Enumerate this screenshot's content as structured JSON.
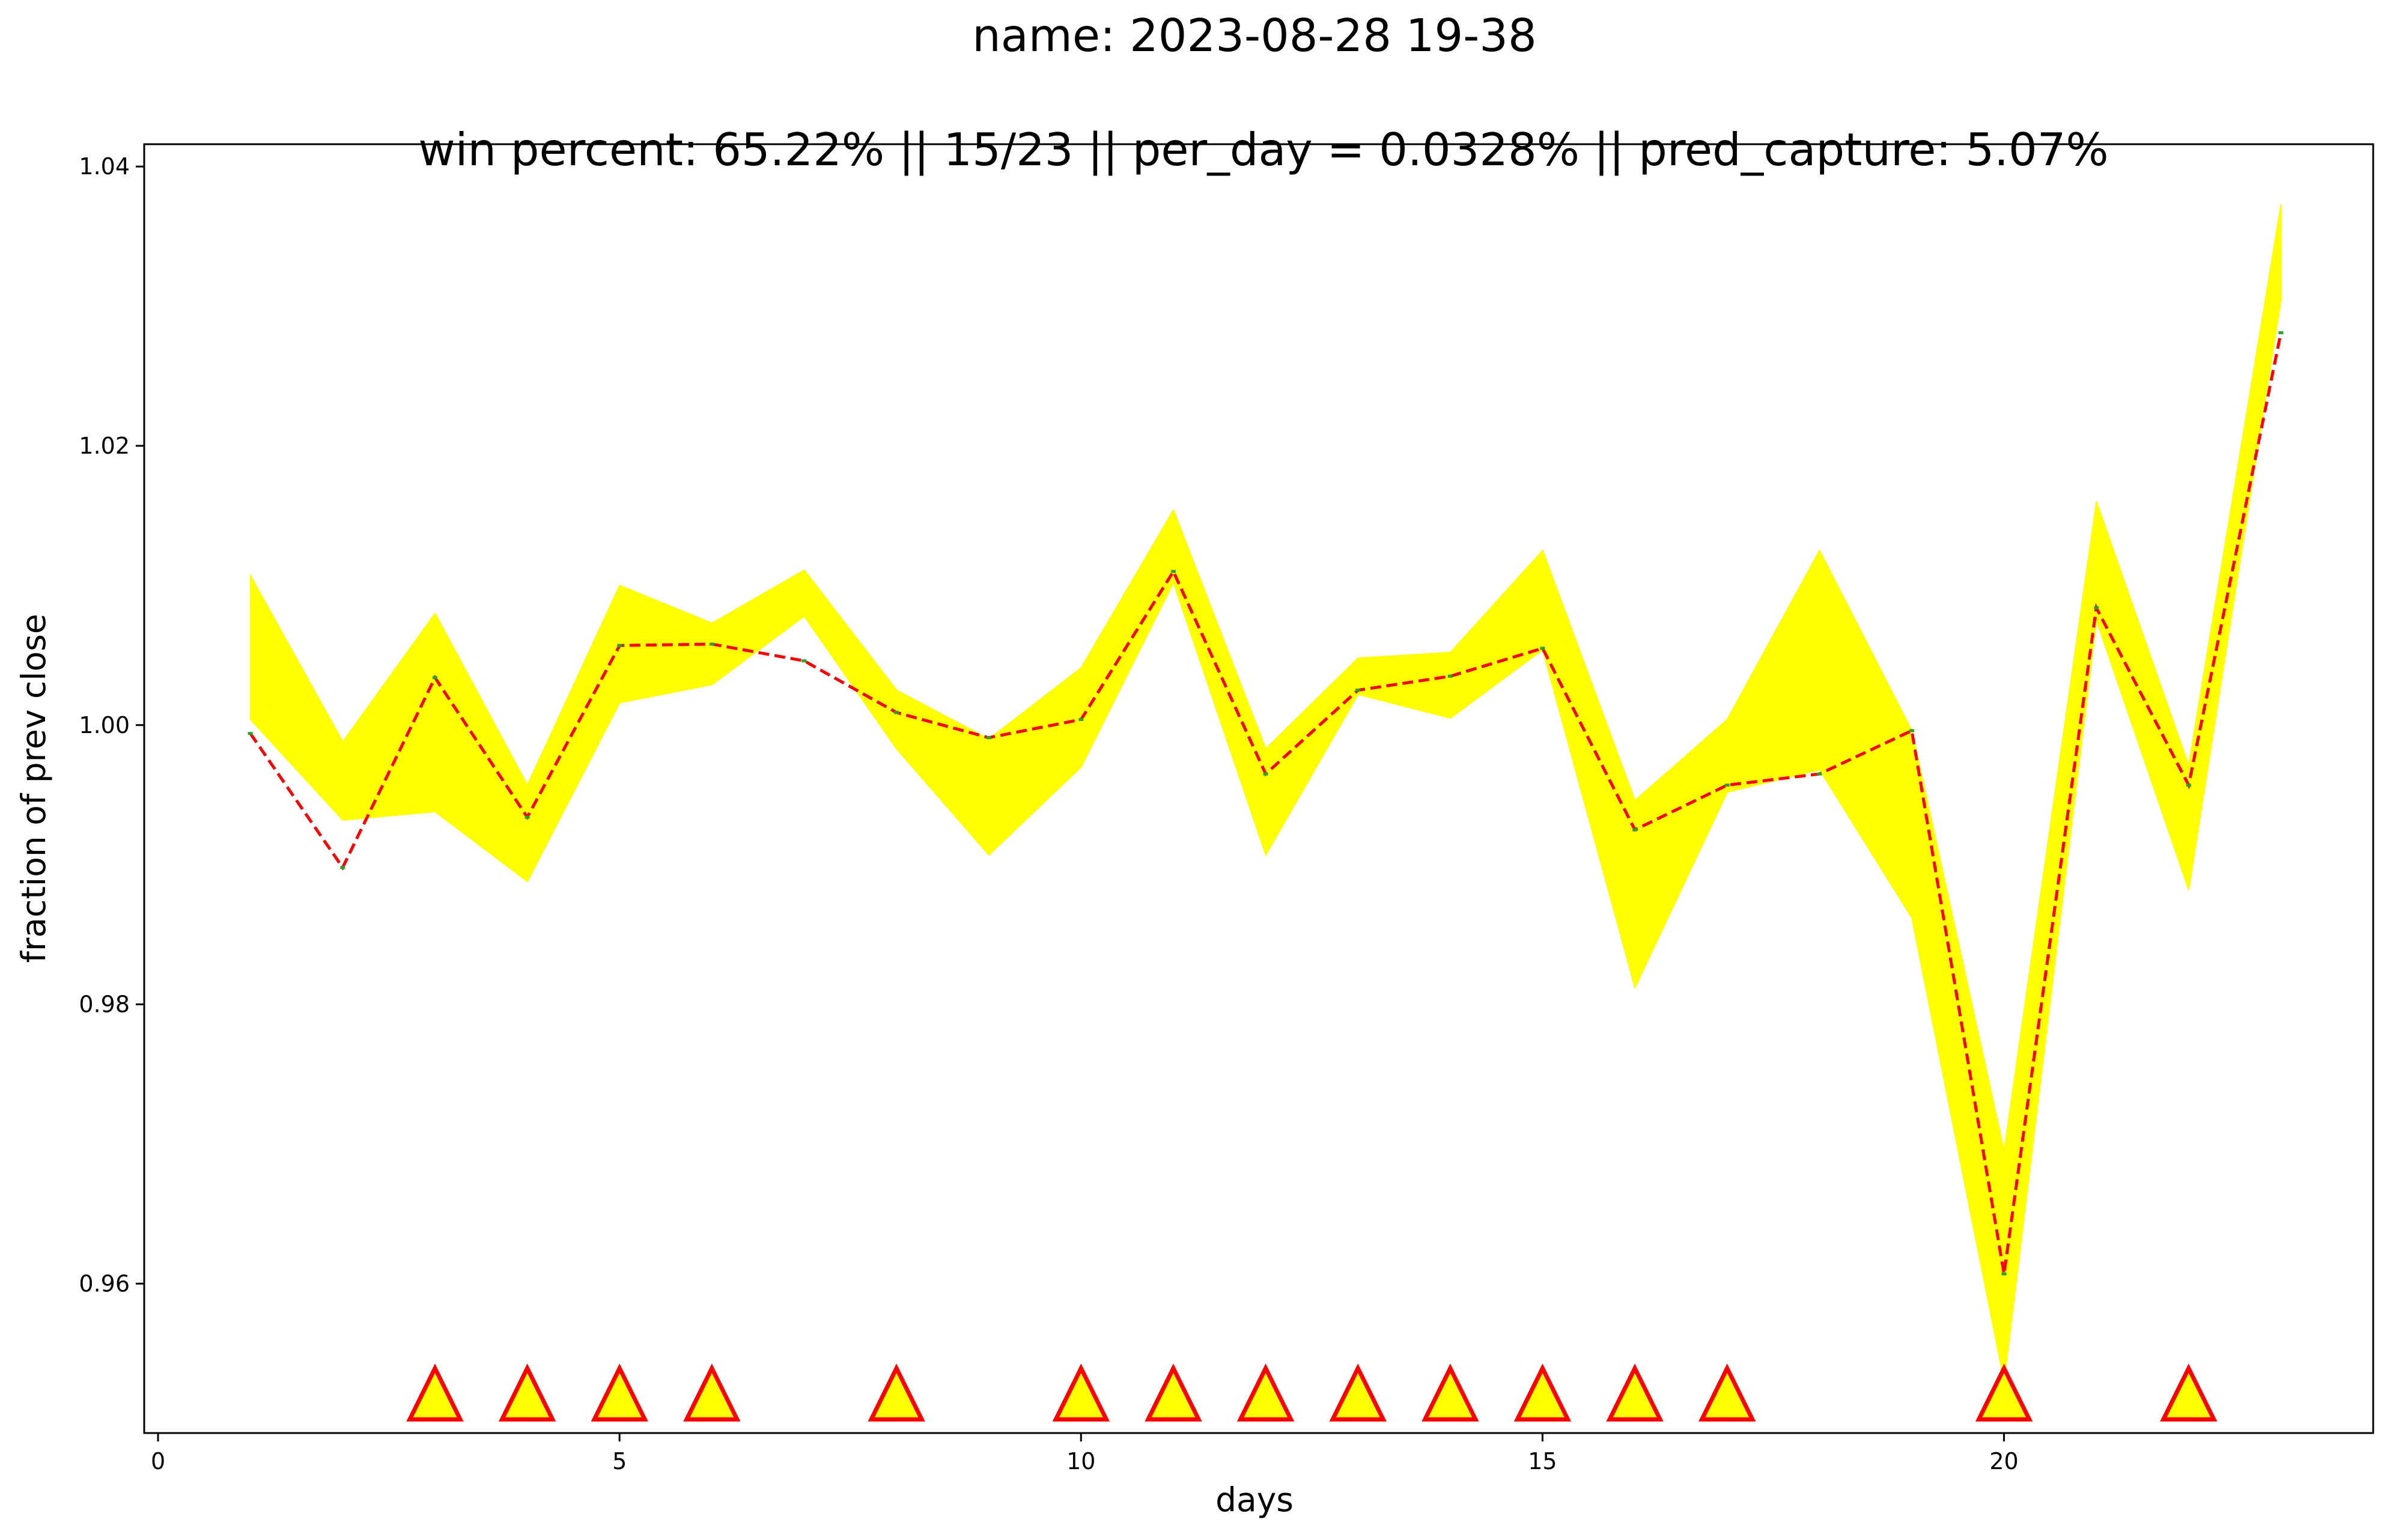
{
  "chart_data": {
    "type": "line",
    "title": "name: 2023-08-28 19-38",
    "subtitle": "win percent: 65.22%   ||  15/23  || per_day = 0.0328% || pred_capture: 5.07%",
    "xlabel": "days",
    "ylabel": "fraction of prev close",
    "xlim": [
      -0.15,
      24.0
    ],
    "ylim": [
      0.9493,
      1.0416
    ],
    "xticks": [
      0,
      5,
      10,
      15,
      20
    ],
    "yticks": [
      0.96,
      0.98,
      1.0,
      1.02,
      1.04
    ],
    "ytick_labels": [
      "0.96",
      "0.98",
      "1.00",
      "1.02",
      "1.04"
    ],
    "grid": false,
    "colors": {
      "band": "#ffff00",
      "line": "#ff0000",
      "points": "#2ca02c",
      "marker_fill": "#ffff00",
      "marker_edge": "#ff0000"
    },
    "x": [
      1,
      2,
      3,
      4,
      5,
      6,
      7,
      8,
      9,
      10,
      11,
      12,
      13,
      14,
      15,
      16,
      17,
      18,
      19,
      20,
      21,
      22,
      23
    ],
    "series": [
      {
        "values": [
          0.9994,
          0.9898,
          1.0034,
          0.9934,
          1.0057,
          1.0058,
          1.0046,
          1.0009,
          0.9991,
          1.0004,
          1.011,
          0.9965,
          1.0025,
          1.0035,
          1.0055,
          0.9925,
          0.9957,
          0.9965,
          0.9996,
          0.9607,
          1.0084,
          0.9957,
          1.0281
        ]
      }
    ],
    "band": {
      "upper": [
        1.0107,
        0.9988,
        1.008,
        0.9957,
        1.01,
        1.0073,
        1.0111,
        1.0025,
        0.999,
        1.0041,
        1.0154,
        0.9983,
        1.0048,
        1.0052,
        1.0125,
        0.9946,
        1.0004,
        1.0125,
        0.9996,
        0.9695,
        1.016,
        0.9971,
        1.0373
      ],
      "lower": [
        1.0004,
        0.9932,
        0.9938,
        0.9888,
        1.0016,
        1.0029,
        1.0078,
        0.9983,
        0.9907,
        0.997,
        1.0102,
        0.9907,
        1.0022,
        1.0005,
        1.0054,
        0.9812,
        0.9952,
        0.9968,
        0.9862,
        0.953,
        1.0075,
        0.9882,
        1.0305
      ]
    },
    "markers": {
      "y": 0.9517,
      "x": [
        3,
        4,
        5,
        6,
        8,
        10,
        11,
        12,
        13,
        14,
        15,
        16,
        17,
        20,
        22
      ]
    }
  }
}
